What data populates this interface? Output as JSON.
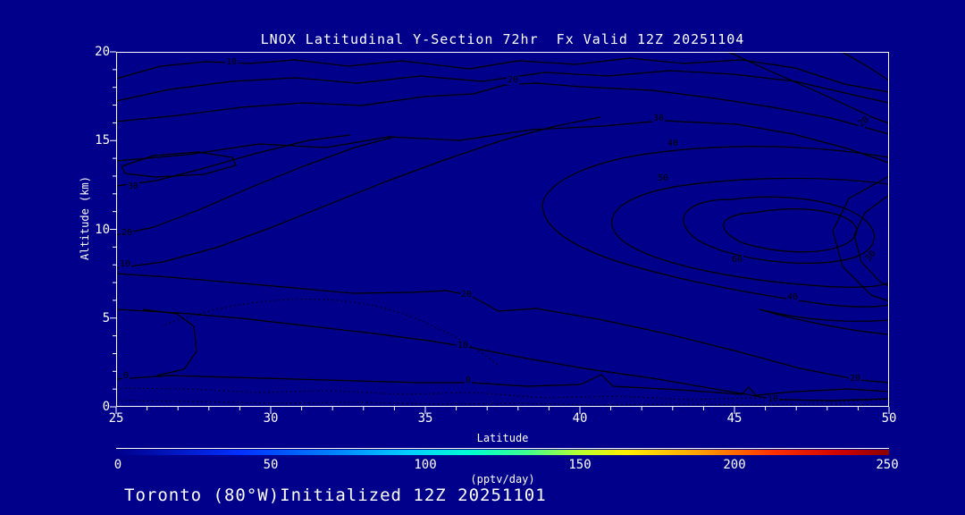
{
  "title": "LNOX Latitudinal Y-Section 72hr  Fx Valid 12Z 20251104",
  "footer": "Toronto (80°W)Initialized 12Z 20251101",
  "axes": {
    "x": {
      "label": "Latitude",
      "ticks": [
        "25",
        "30",
        "35",
        "40",
        "45",
        "50"
      ]
    },
    "y": {
      "label": "Altitude (km)",
      "ticks": [
        "0",
        "5",
        "10",
        "15",
        "20"
      ]
    }
  },
  "colorbar": {
    "units": "(pptv/day)",
    "ticks": [
      "0",
      "50",
      "100",
      "150",
      "200",
      "250"
    ],
    "gradient": [
      "#00008B 0%",
      "#0030FF 16%",
      "#0080FF 28%",
      "#00CFFF 38%",
      "#00FFD0 46%",
      "#3DFF90 53%",
      "#B8FF30 60%",
      "#FFF000 66%",
      "#FFA500 75%",
      "#FF3000 85%",
      "#CC0000 94%",
      "#8B0000 100%"
    ]
  },
  "contour_labels": [
    {
      "text": "10"
    },
    {
      "text": "20"
    },
    {
      "text": "30"
    },
    {
      "text": "20"
    },
    {
      "text": "40"
    },
    {
      "text": "50"
    },
    {
      "text": "30"
    },
    {
      "text": "20"
    },
    {
      "text": "10"
    },
    {
      "text": "60"
    },
    {
      "text": "30"
    },
    {
      "text": "40"
    },
    {
      "text": "20"
    },
    {
      "text": "10"
    },
    {
      "text": "0"
    },
    {
      "text": "0"
    },
    {
      "text": "20"
    },
    {
      "text": "10"
    }
  ],
  "chart_data": {
    "type": "contour",
    "title": "LNOX Latitudinal Y-Section 72hr  Fx Valid 12Z 20251104",
    "xlabel": "Latitude",
    "ylabel": "Altitude (km)",
    "x_range": [
      25,
      50
    ],
    "y_range": [
      0,
      20
    ],
    "x_ticks": [
      25,
      30,
      35,
      40,
      45,
      50
    ],
    "y_ticks": [
      0,
      5,
      10,
      15,
      20
    ],
    "contour_interval": 10,
    "levels_labeled": [
      0,
      10,
      20,
      30,
      40,
      50,
      60
    ],
    "negative_contours_style": "dotted",
    "line_color": "#000000",
    "background_color": "#00008B",
    "labeled_points": [
      {
        "level": 10,
        "lat": 28.8,
        "alt_km": 19.3
      },
      {
        "level": 20,
        "lat": 38.0,
        "alt_km": 18.3
      },
      {
        "level": 30,
        "lat": 42.8,
        "alt_km": 16.3
      },
      {
        "level": 20,
        "lat": 49.4,
        "alt_km": 15.9
      },
      {
        "level": 40,
        "lat": 43.2,
        "alt_km": 14.7
      },
      {
        "level": 50,
        "lat": 42.8,
        "alt_km": 12.7
      },
      {
        "level": 30,
        "lat": 25.7,
        "alt_km": 12.3
      },
      {
        "level": 20,
        "lat": 25.4,
        "alt_km": 9.7
      },
      {
        "level": 10,
        "lat": 25.3,
        "alt_km": 7.9
      },
      {
        "level": 60,
        "lat": 45.2,
        "alt_km": 8.2
      },
      {
        "level": 30,
        "lat": 49.6,
        "alt_km": 8.3
      },
      {
        "level": 40,
        "lat": 47.1,
        "alt_km": 6.0
      },
      {
        "level": 20,
        "lat": 36.5,
        "alt_km": 6.2
      },
      {
        "level": 10,
        "lat": 36.3,
        "alt_km": 3.3
      },
      {
        "level": 0,
        "lat": 25.4,
        "alt_km": 1.6
      },
      {
        "level": 0,
        "lat": 36.5,
        "alt_km": 1.3
      },
      {
        "level": 20,
        "lat": 49.1,
        "alt_km": 1.3
      },
      {
        "level": 10,
        "lat": 46.4,
        "alt_km": 0.3
      }
    ],
    "maximum": {
      "lat": 46.3,
      "alt_km": 9.5,
      "value_exceeds": 60
    },
    "colorbar": {
      "range": [
        0,
        250
      ],
      "ticks": [
        0,
        50,
        100,
        150,
        200,
        250
      ],
      "units": "pptv/day"
    }
  }
}
